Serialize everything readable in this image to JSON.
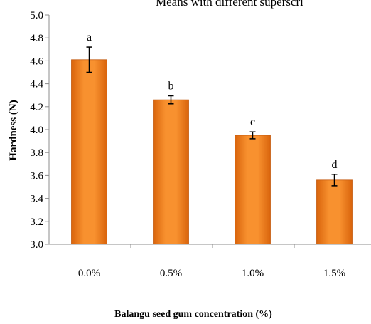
{
  "header_note": "Means with different superscri",
  "chart_data": {
    "type": "bar",
    "categories": [
      "0.0%",
      "0.5%",
      "1.0%",
      "1.5%"
    ],
    "series": [
      {
        "values": [
          4.61,
          4.26,
          3.95,
          3.56
        ],
        "errors": [
          0.11,
          0.035,
          0.03,
          0.05
        ],
        "labels": [
          "a",
          "b",
          "c",
          "d"
        ],
        "color": "#f07d1a"
      }
    ],
    "xlabel": "Balangu seed gum concentration (%)",
    "ylabel": "Hardness (N)",
    "ylim": [
      3.0,
      5.0
    ],
    "yticks": [
      "3.0",
      "3.2",
      "3.4",
      "3.6",
      "3.8",
      "4.0",
      "4.2",
      "4.4",
      "4.6",
      "4.8",
      "5.0"
    ],
    "grid": false,
    "legend": "none"
  }
}
